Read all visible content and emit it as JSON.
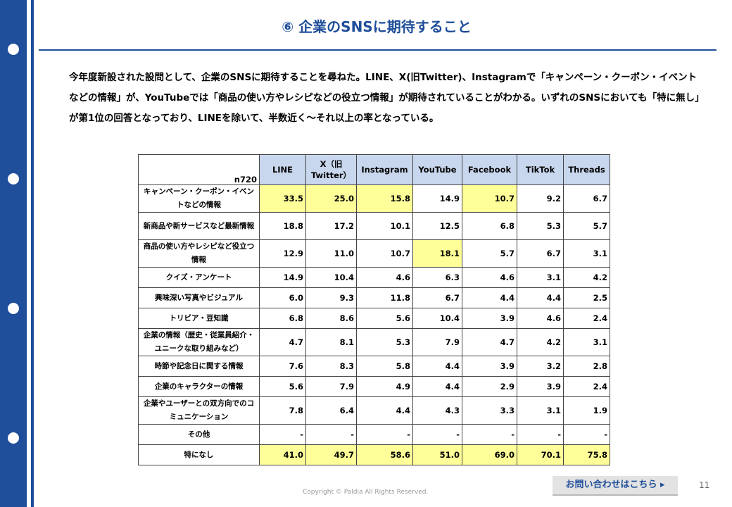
{
  "page": {
    "title": "⑥ 企業のSNSに期待すること",
    "body": "今年度新設された設問として、企業のSNSに期待することを尋ねた。LINE、X(旧Twitter)、Instagramで「キャンペーン・クーポン・イベントなどの情報」が、YouTubeでは「商品の使い方やレシピなどの役立つ情報」が期待されていることがわかる。いずれのSNSにおいても「特に無し」が第1位の回答となっており、LINEを除いて、半数近く～それ以上の率となっている。",
    "contact_label": "お問い合わせはこちら ▸",
    "page_number": "11",
    "copyright": "Copyright © Paldia All Rights Reserved.",
    "accent_color": "#1f4e9a",
    "highlight_color": "#ffff99"
  },
  "table": {
    "corner": "n720",
    "columns": [
      "LINE",
      "X（旧Twitter）",
      "Instagram",
      "YouTube",
      "Facebook",
      "TikTok",
      "Threads"
    ],
    "rows": [
      {
        "label": "キャンペーン・クーポン・イベントなどの情報",
        "values": [
          "33.5",
          "25.0",
          "15.8",
          "14.9",
          "10.7",
          "9.2",
          "6.7"
        ],
        "highlight": [
          true,
          true,
          true,
          false,
          true,
          false,
          false
        ]
      },
      {
        "label": "新商品や新サービスなど最新情報",
        "values": [
          "18.8",
          "17.2",
          "10.1",
          "12.5",
          "6.8",
          "5.3",
          "5.7"
        ],
        "highlight": [
          false,
          false,
          false,
          false,
          false,
          false,
          false
        ]
      },
      {
        "label": "商品の使い方やレシピなど役立つ情報",
        "values": [
          "12.9",
          "11.0",
          "10.7",
          "18.1",
          "5.7",
          "6.7",
          "3.1"
        ],
        "highlight": [
          false,
          false,
          false,
          true,
          false,
          false,
          false
        ]
      },
      {
        "label": "クイズ・アンケート",
        "values": [
          "14.9",
          "10.4",
          "4.6",
          "6.3",
          "4.6",
          "3.1",
          "4.2"
        ],
        "highlight": [
          false,
          false,
          false,
          false,
          false,
          false,
          false
        ]
      },
      {
        "label": "興味深い写真やビジュアル",
        "values": [
          "6.0",
          "9.3",
          "11.8",
          "6.7",
          "4.4",
          "4.4",
          "2.5"
        ],
        "highlight": [
          false,
          false,
          false,
          false,
          false,
          false,
          false
        ]
      },
      {
        "label": "トリビア・豆知識",
        "values": [
          "6.8",
          "8.6",
          "5.6",
          "10.4",
          "3.9",
          "4.6",
          "2.4"
        ],
        "highlight": [
          false,
          false,
          false,
          false,
          false,
          false,
          false
        ]
      },
      {
        "label": "企業の情報（歴史・従業員紹介・ユニークな取り組みなど）",
        "values": [
          "4.7",
          "8.1",
          "5.3",
          "7.9",
          "4.7",
          "4.2",
          "3.1"
        ],
        "highlight": [
          false,
          false,
          false,
          false,
          false,
          false,
          false
        ]
      },
      {
        "label": "時節や記念日に関する情報",
        "values": [
          "7.6",
          "8.3",
          "5.8",
          "4.4",
          "3.9",
          "3.2",
          "2.8"
        ],
        "highlight": [
          false,
          false,
          false,
          false,
          false,
          false,
          false
        ]
      },
      {
        "label": "企業のキャラクターの情報",
        "values": [
          "5.6",
          "7.9",
          "4.9",
          "4.4",
          "2.9",
          "3.9",
          "2.4"
        ],
        "highlight": [
          false,
          false,
          false,
          false,
          false,
          false,
          false
        ]
      },
      {
        "label": "企業やユーザーとの双方向でのコミュニケーション",
        "values": [
          "7.8",
          "6.4",
          "4.4",
          "4.3",
          "3.3",
          "3.1",
          "1.9"
        ],
        "highlight": [
          false,
          false,
          false,
          false,
          false,
          false,
          false
        ]
      },
      {
        "label": "その他",
        "values": [
          "-",
          "-",
          "-",
          "-",
          "-",
          "-",
          "-"
        ],
        "highlight": [
          false,
          false,
          false,
          false,
          false,
          false,
          false
        ]
      },
      {
        "label": "特になし",
        "values": [
          "41.0",
          "49.7",
          "58.6",
          "51.0",
          "69.0",
          "70.1",
          "75.8"
        ],
        "highlight": [
          true,
          true,
          true,
          true,
          true,
          true,
          true
        ]
      }
    ]
  }
}
